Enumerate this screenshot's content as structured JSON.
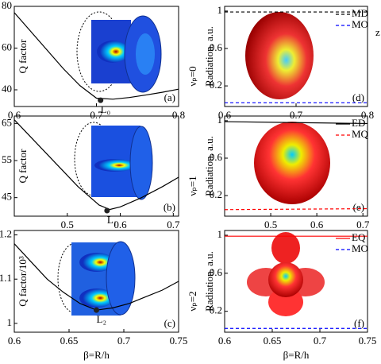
{
  "chart_data": [
    {
      "type": "line",
      "label": "(a)",
      "y_label": "Q factor",
      "xlim": [
        0.6,
        0.8
      ],
      "xticks": [
        0.6,
        0.7,
        0.8
      ],
      "ylim": [
        32,
        80
      ],
      "yticks": [
        40,
        60,
        80
      ],
      "x": [
        0.6,
        0.62,
        0.64,
        0.66,
        0.68,
        0.7,
        0.72,
        0.74,
        0.76,
        0.78,
        0.8
      ],
      "series": [
        {
          "color": "#000000",
          "values": [
            77,
            68,
            59,
            50,
            42,
            36,
            35.5,
            36.3,
            37.5,
            38.8,
            40.3
          ]
        }
      ],
      "point": {
        "x": 0.705,
        "y": 35,
        "label": "L₀"
      }
    },
    {
      "type": "line",
      "label": "(d)",
      "y_label": "Radiation, a.u.",
      "side_label": "νₚ=0",
      "annotation": "z",
      "xlim": [
        0.6,
        0.8
      ],
      "xticks": [
        0.6,
        0.7,
        0.8
      ],
      "ylim": [
        -0.02,
        1.05
      ],
      "yticks": [
        0.2,
        0.6,
        1
      ],
      "x": [
        0.6,
        0.8
      ],
      "series": [
        {
          "name": "MD",
          "color": "#000000",
          "dash": true,
          "values": [
            0.99,
            0.99
          ]
        },
        {
          "name": "MO",
          "color": "#0000ff",
          "dash": true,
          "values": [
            0.02,
            0.02
          ]
        }
      ]
    },
    {
      "type": "line",
      "label": "(b)",
      "y_label": "Q factor",
      "xlim": [
        0.4,
        0.71
      ],
      "xticks": [
        0.5,
        0.6,
        0.7
      ],
      "ylim": [
        40,
        67
      ],
      "yticks": [
        45,
        55,
        65
      ],
      "x": [
        0.4,
        0.44,
        0.48,
        0.52,
        0.56,
        0.58,
        0.6,
        0.64,
        0.68,
        0.71
      ],
      "series": [
        {
          "color": "#000000",
          "values": [
            66,
            60,
            54,
            48,
            43,
            41.8,
            42.5,
            45,
            48,
            50.5
          ]
        }
      ],
      "point": {
        "x": 0.575,
        "y": 41.5,
        "label": "L₁"
      }
    },
    {
      "type": "line",
      "label": "(e)",
      "y_label": "Radiation, a.u.",
      "side_label": "νₚ=1",
      "xlim": [
        0.4,
        0.71
      ],
      "xticks": [
        0.5,
        0.6,
        0.7
      ],
      "ylim": [
        -0.02,
        1.05
      ],
      "yticks": [
        0.2,
        0.6,
        1
      ],
      "x": [
        0.4,
        0.71
      ],
      "series": [
        {
          "name": "ED",
          "color": "#000000",
          "values": [
            0.99,
            0.97
          ]
        },
        {
          "name": "MQ",
          "color": "#ff0000",
          "dash": true,
          "values": [
            0.05,
            0.06
          ]
        }
      ]
    },
    {
      "type": "line",
      "label": "(c)",
      "y_label": "Q factor/10³",
      "x_label": "β=R/h",
      "xlim": [
        0.6,
        0.75
      ],
      "xticks": [
        0.6,
        0.65,
        0.7,
        0.75
      ],
      "ylim": [
        0.98,
        1.21
      ],
      "yticks": [
        1,
        1.1,
        1.2
      ],
      "x": [
        0.6,
        0.615,
        0.63,
        0.645,
        0.66,
        0.675,
        0.69,
        0.705,
        0.72,
        0.735,
        0.75
      ],
      "series": [
        {
          "color": "#000000",
          "values": [
            1.18,
            1.14,
            1.1,
            1.07,
            1.045,
            1.03,
            1.035,
            1.045,
            1.06,
            1.075,
            1.095
          ]
        }
      ],
      "point": {
        "x": 0.675,
        "y": 1.03,
        "label": "L₂"
      }
    },
    {
      "type": "line",
      "label": "(f)",
      "y_label": "Radiation, a.u.",
      "side_label": "νₚ=2",
      "x_label": "β=R/h",
      "xlim": [
        0.6,
        0.75
      ],
      "xticks": [
        0.6,
        0.65,
        0.7,
        0.75
      ],
      "ylim": [
        -0.02,
        1.05
      ],
      "yticks": [
        0.2,
        0.6,
        1
      ],
      "x": [
        0.6,
        0.75
      ],
      "series": [
        {
          "name": "EQ",
          "color": "#ff0000",
          "values": [
            0.99,
            0.99
          ]
        },
        {
          "name": "MO",
          "color": "#0000ff",
          "dash": true,
          "values": [
            0.02,
            0.02
          ]
        }
      ]
    }
  ]
}
